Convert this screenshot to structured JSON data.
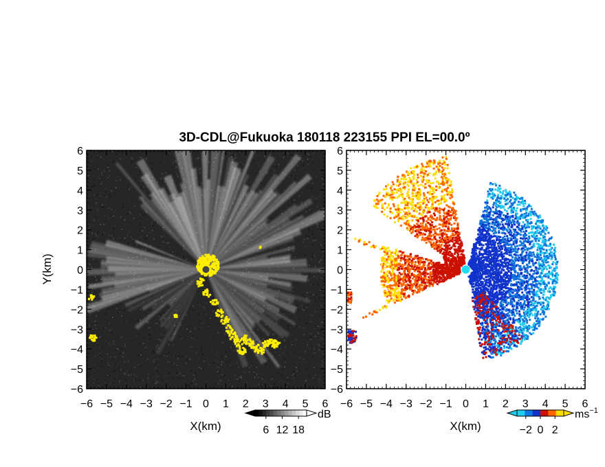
{
  "title": "3D-CDL@Fukuoka 180118 223155 PPI EL=00.0º",
  "chart_data": [
    {
      "type": "heatmap",
      "panel": "left",
      "quantity": "reflectivity (dB)",
      "xlabel": "X(km)",
      "ylabel": "Y(km)",
      "xlim": [
        -6,
        6
      ],
      "ylim": [
        -6,
        6
      ],
      "xticks": [
        -6,
        -5,
        -4,
        -3,
        -2,
        -1,
        0,
        1,
        2,
        3,
        4,
        5,
        6
      ],
      "yticks": [
        -6,
        -5,
        -4,
        -3,
        -2,
        -1,
        0,
        1,
        2,
        3,
        4,
        5,
        6
      ],
      "grid": false,
      "background_color": "#262626",
      "highlight_color": "#ffee00",
      "colorbar": {
        "label": "dB",
        "ticks": [
          6,
          12,
          18
        ],
        "colors": [
          "#000000",
          "#ffffff"
        ]
      }
    },
    {
      "type": "heatmap",
      "panel": "right",
      "quantity": "radial velocity (ms-1)",
      "xlabel": "X(km)",
      "ylabel": "",
      "xlim": [
        -6,
        6
      ],
      "ylim": [
        -6,
        6
      ],
      "xticks": [
        -6,
        -5,
        -4,
        -3,
        -2,
        -1,
        0,
        1,
        2,
        3,
        4,
        5,
        6
      ],
      "yticks": [
        -6,
        -5,
        -4,
        -3,
        -2,
        -1,
        0,
        1,
        2,
        3,
        4,
        5,
        6
      ],
      "grid": false,
      "background_color": "#ffffff",
      "origin_marker_color": "#22ddee",
      "colorbar": {
        "label": "ms",
        "label_exponent": "−1",
        "ticks": [
          -2,
          0,
          2
        ],
        "colors": [
          "#22ccee",
          "#1177dd",
          "#1133cc",
          "#cc1100",
          "#ff6600",
          "#ffdd00"
        ]
      }
    }
  ]
}
